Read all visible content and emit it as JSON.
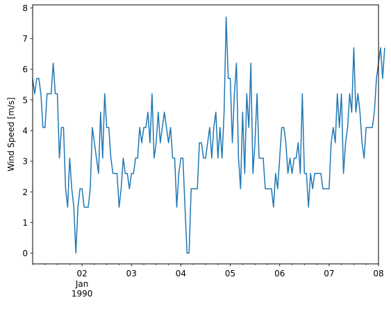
{
  "chart_data": {
    "type": "line",
    "title": "",
    "xlabel": "",
    "ylabel": "Wind Speed [m/s]",
    "x_axis": {
      "type": "datetime",
      "range": [
        "1990-01-01T00:00",
        "1990-01-08T00:00"
      ],
      "major_ticks": [
        {
          "date": "1990-01-02",
          "label": "02",
          "label_line2": "Jan",
          "label_line3": "1990"
        },
        {
          "date": "1990-01-03",
          "label": "03"
        },
        {
          "date": "1990-01-04",
          "label": "04"
        },
        {
          "date": "1990-01-05",
          "label": "05"
        },
        {
          "date": "1990-01-06",
          "label": "06"
        },
        {
          "date": "1990-01-07",
          "label": "07"
        },
        {
          "date": "1990-01-08",
          "label": "08"
        }
      ]
    },
    "ylim": [
      -0.35,
      8.1
    ],
    "y_ticks": [
      0,
      1,
      2,
      3,
      4,
      5,
      6,
      7,
      8
    ],
    "grid": false,
    "legend": "none",
    "series": [
      {
        "color": "#1f77b4",
        "interval_hours": 1,
        "start": "1990-01-01T00:00",
        "values": [
          5.7,
          5.2,
          5.7,
          5.7,
          5.2,
          4.1,
          4.1,
          5.2,
          5.2,
          5.2,
          6.2,
          5.2,
          5.2,
          3.1,
          4.1,
          4.1,
          2.1,
          1.5,
          3.1,
          2.1,
          1.5,
          0.0,
          1.5,
          2.1,
          2.1,
          1.5,
          1.5,
          1.5,
          2.1,
          4.1,
          3.6,
          3.1,
          2.6,
          4.6,
          3.1,
          5.2,
          4.1,
          4.1,
          3.1,
          2.6,
          2.6,
          2.6,
          1.5,
          2.1,
          3.1,
          2.6,
          2.6,
          2.1,
          2.6,
          2.6,
          3.1,
          3.1,
          4.1,
          3.6,
          4.1,
          4.1,
          4.6,
          3.6,
          5.2,
          3.1,
          3.6,
          4.6,
          3.6,
          4.1,
          4.6,
          4.1,
          3.6,
          4.1,
          3.1,
          3.1,
          1.5,
          2.6,
          3.1,
          3.1,
          1.5,
          0.0,
          0.0,
          2.1,
          2.1,
          2.1,
          2.1,
          3.6,
          3.6,
          3.1,
          3.1,
          3.6,
          4.1,
          3.1,
          4.1,
          4.6,
          3.1,
          4.1,
          3.1,
          4.6,
          7.7,
          5.7,
          5.7,
          3.6,
          5.2,
          6.2,
          3.1,
          2.1,
          4.6,
          2.6,
          5.2,
          4.1,
          6.2,
          2.6,
          3.6,
          5.2,
          3.1,
          3.1,
          3.1,
          2.1,
          2.1,
          2.1,
          2.1,
          1.5,
          2.6,
          2.1,
          3.1,
          4.1,
          4.1,
          3.6,
          2.6,
          3.1,
          2.6,
          3.1,
          3.1,
          3.6,
          2.6,
          5.2,
          2.6,
          2.6,
          1.5,
          2.6,
          2.1,
          2.6,
          2.6,
          2.6,
          2.6,
          2.1,
          2.1,
          2.1,
          2.1,
          3.6,
          4.1,
          3.6,
          5.2,
          4.1,
          5.2,
          2.6,
          3.6,
          4.1,
          5.2,
          4.6,
          6.7,
          4.6,
          5.2,
          4.6,
          3.6,
          3.1,
          4.1,
          4.1,
          4.1,
          4.1,
          4.6,
          5.7,
          6.2,
          6.7,
          5.7,
          6.7
        ]
      }
    ]
  }
}
